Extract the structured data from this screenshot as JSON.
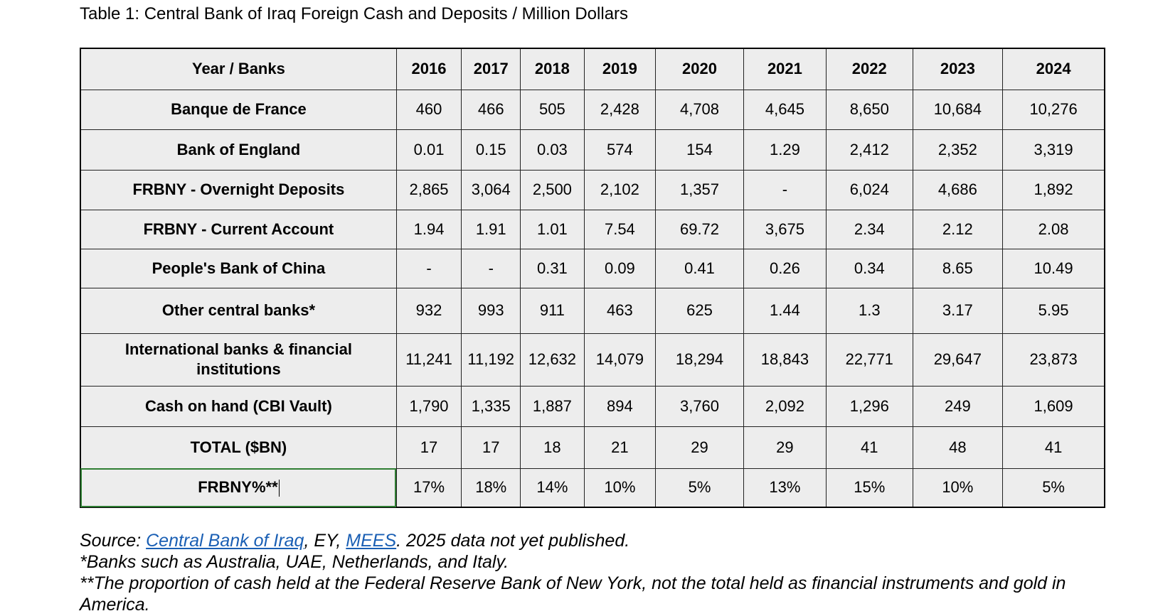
{
  "caption": "Table 1: Central Bank of Iraq Foreign Cash and Deposits / Million Dollars",
  "table": {
    "header_label": "Year / Banks",
    "years": [
      "2016",
      "2017",
      "2018",
      "2019",
      "2020",
      "2021",
      "2022",
      "2023",
      "2024"
    ],
    "rows": [
      {
        "label": "Banque de France",
        "values": [
          "460",
          "466",
          "505",
          "2,428",
          "4,708",
          "4,645",
          "8,650",
          "10,684",
          "10,276"
        ]
      },
      {
        "label": "Bank of England",
        "values": [
          "0.01",
          "0.15",
          "0.03",
          "574",
          "154",
          "1.29",
          "2,412",
          "2,352",
          "3,319"
        ]
      },
      {
        "label": "FRBNY - Overnight Deposits",
        "values": [
          "2,865",
          "3,064",
          "2,500",
          "2,102",
          "1,357",
          "-",
          "6,024",
          "4,686",
          "1,892"
        ]
      },
      {
        "label": "FRBNY - Current Account",
        "values": [
          "1.94",
          "1.91",
          "1.01",
          "7.54",
          "69.72",
          "3,675",
          "2.34",
          "2.12",
          "2.08"
        ]
      },
      {
        "label": "People's Bank of China",
        "values": [
          "-",
          "-",
          "0.31",
          "0.09",
          "0.41",
          "0.26",
          "0.34",
          "8.65",
          "10.49"
        ]
      },
      {
        "label": "Other central banks*",
        "values": [
          "932",
          "993",
          "911",
          "463",
          "625",
          "1.44",
          "1.3",
          "3.17",
          "5.95"
        ]
      },
      {
        "label": "International banks & financial institutions",
        "values": [
          "11,241",
          "11,192",
          "12,632",
          "14,079",
          "18,294",
          "18,843",
          "22,771",
          "29,647",
          "23,873"
        ]
      },
      {
        "label": "Cash on hand (CBI Vault)",
        "values": [
          "1,790",
          "1,335",
          "1,887",
          "894",
          "3,760",
          "2,092",
          "1,296",
          "249",
          "1,609"
        ]
      },
      {
        "label": "TOTAL ($BN)",
        "values": [
          "17",
          "17",
          "18",
          "21",
          "29",
          "29",
          "41",
          "48",
          "41"
        ]
      },
      {
        "label": "FRBNY%**",
        "values": [
          "17%",
          "18%",
          "14%",
          "10%",
          "5%",
          "13%",
          "15%",
          "10%",
          "5%"
        ]
      }
    ]
  },
  "notes": {
    "source_prefix": "Source: ",
    "source_link_cbi": "Central Bank of Iraq",
    "source_mid": ", EY, ",
    "source_link_mees": "MEES",
    "source_suffix": ". 2025 data not yet published.",
    "footnote_1": "*Banks such as Australia, UAE, Netherlands, and Italy.",
    "footnote_2": "**The proportion of cash held at the Federal Reserve Bank of New York, not the total held as financial instruments and gold in America."
  }
}
